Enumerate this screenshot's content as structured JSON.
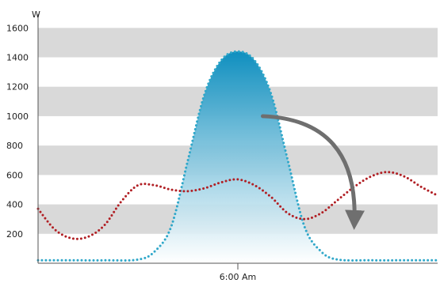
{
  "colors": {
    "band": "#d9d9d9",
    "axis": "#555555",
    "solar_dots": "#2fa7c9",
    "solar_fill_top": "#0f8fbf",
    "solar_fill_bottom": "#ffffff",
    "load_dots": "#b11f24",
    "arrow": "#6f6f6f"
  },
  "chart_data": {
    "type": "line",
    "title": "",
    "xlabel": "",
    "ylabel": "W",
    "ylim": [
      0,
      1650
    ],
    "yticks": [
      200,
      400,
      600,
      800,
      1000,
      1200,
      1400,
      1600
    ],
    "grid": "alternating horizontal bands",
    "xlim": [
      -12,
      12
    ],
    "xtick_labels": [
      {
        "x": 0,
        "label": "6:00 Am"
      }
    ],
    "series": [
      {
        "style": "dotted area",
        "x": [
          -12,
          -10,
          -8,
          -6,
          -5,
          -4,
          -3,
          -2,
          -1,
          0,
          1,
          2,
          3,
          4,
          5,
          6,
          8,
          10,
          12
        ],
        "values": [
          20,
          20,
          20,
          25,
          80,
          250,
          700,
          1150,
          1380,
          1440,
          1380,
          1150,
          700,
          250,
          80,
          25,
          20,
          20,
          20
        ]
      },
      {
        "style": "dotted line",
        "x": [
          -12,
          -11,
          -10,
          -9,
          -8,
          -7,
          -6,
          -5,
          -4,
          -3,
          -2,
          -1,
          0,
          1,
          2,
          3,
          4,
          5,
          6,
          7,
          8,
          9,
          10,
          11,
          12
        ],
        "values": [
          370,
          230,
          170,
          180,
          260,
          420,
          530,
          530,
          500,
          490,
          510,
          550,
          570,
          530,
          450,
          340,
          300,
          340,
          430,
          520,
          590,
          620,
          590,
          520,
          460
        ]
      }
    ],
    "annotations": [
      {
        "type": "arrow",
        "from": {
          "x": 1.5,
          "y": 1000
        },
        "to": {
          "x": 7,
          "y": 280
        }
      }
    ]
  }
}
